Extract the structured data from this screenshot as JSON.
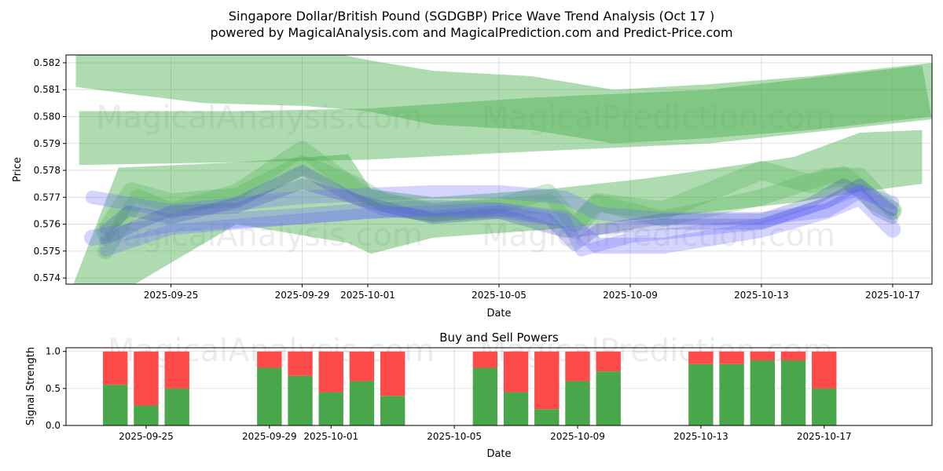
{
  "chart_data": [
    {
      "type": "area",
      "title": "Singapore Dollar/British Pound (SGDGBP) Price Wave Trend Analysis (Oct 17 )",
      "subtitle": "powered by MagicalAnalysis.com and MagicalPrediction.com and Predict-Price.com",
      "xlabel": "Date",
      "ylabel": "Price",
      "x_unit": "days since 2025-09-25",
      "xlim": [
        -3.2,
        23.2
      ],
      "ylim": [
        0.57377,
        0.58229
      ],
      "yticks": [
        "0.574",
        "0.575",
        "0.576",
        "0.577",
        "0.578",
        "0.579",
        "0.580",
        "0.581",
        "0.582"
      ],
      "ytick_values": [
        0.574,
        0.575,
        0.576,
        0.577,
        0.578,
        0.579,
        0.58,
        0.581,
        0.582
      ],
      "xticks": [
        "2025-09-25",
        "2025-09-29",
        "2025-10-01",
        "2025-10-05",
        "2025-10-09",
        "2025-10-13",
        "2025-10-17"
      ],
      "xtick_values": [
        0,
        4,
        6,
        10,
        14,
        18,
        22
      ],
      "grid": true,
      "watermarks": [
        "MagicalAnalysis.com",
        "MagicalPrediction.com"
      ],
      "bands": [
        {
          "color": "#4caf50",
          "x": [
            -2.9,
            -1,
            1,
            4,
            6,
            8,
            11,
            13.5,
            16.4,
            19.5,
            23.2,
            23.2,
            19.5,
            16.4,
            13.5,
            11,
            8,
            6,
            4,
            1,
            -1,
            -2.9
          ],
          "y": [
            0.5825,
            0.5827,
            0.5827,
            0.5826,
            0.5821,
            0.5817,
            0.5815,
            0.581,
            0.5812,
            0.5815,
            0.582,
            0.58,
            0.5795,
            0.5792,
            0.579,
            0.5795,
            0.5797,
            0.5802,
            0.5804,
            0.5805,
            0.5808,
            0.5811
          ]
        },
        {
          "color": "#4caf50",
          "x": [
            -2.8,
            2,
            6,
            11,
            16.4,
            22.9,
            23.2,
            16.4,
            11,
            6,
            2,
            -2.8
          ],
          "y": [
            0.5802,
            0.5802,
            0.5803,
            0.5807,
            0.581,
            0.5819,
            0.5799,
            0.579,
            0.5787,
            0.5784,
            0.5783,
            0.5782
          ]
        },
        {
          "color": "#4caf50",
          "x": [
            -3,
            -1.6,
            2,
            5.4,
            6.1,
            8,
            11.5,
            14.5,
            19,
            21,
            22.9,
            22.9,
            21,
            19,
            14.5,
            11.5,
            8,
            6.1,
            5.4,
            2,
            -1.2,
            -3
          ],
          "y": [
            0.5737,
            0.5781,
            0.5783,
            0.5786,
            0.5773,
            0.577,
            0.5773,
            0.5777,
            0.5785,
            0.5794,
            0.5795,
            0.5775,
            0.5772,
            0.5768,
            0.5762,
            0.5758,
            0.5755,
            0.5749,
            0.5753,
            0.576,
            0.5737,
            0.5737
          ]
        }
      ],
      "waves": [
        {
          "color": "#4caf50",
          "width": 0.0007,
          "x": [
            -2,
            -1.2,
            0,
            2,
            4,
            5.5,
            6.5,
            8,
            10,
            11.5,
            12.3,
            13,
            15,
            18,
            19.5,
            20.5,
            21.5,
            22
          ],
          "y": [
            0.5757,
            0.5772,
            0.5768,
            0.577,
            0.5782,
            0.5775,
            0.5768,
            0.5764,
            0.5766,
            0.5768,
            0.5758,
            0.5768,
            0.5765,
            0.578,
            0.5775,
            0.5778,
            0.5768,
            0.5765
          ]
        },
        {
          "color": "#4caf50",
          "width": 0.0006,
          "x": [
            -2,
            -1,
            0,
            2,
            4,
            6,
            8,
            10,
            11.5,
            12.3,
            13,
            15,
            18,
            20,
            21,
            22
          ],
          "y": [
            0.575,
            0.577,
            0.5765,
            0.5772,
            0.5788,
            0.577,
            0.5765,
            0.5767,
            0.5772,
            0.576,
            0.5768,
            0.5762,
            0.577,
            0.5778,
            0.5778,
            0.5765
          ]
        },
        {
          "color": "#3f51b5",
          "width": 0.0004,
          "x": [
            -2,
            -1.3,
            0,
            2,
            4,
            5.5,
            6.5,
            8,
            10,
            11.5,
            12.3,
            13,
            15,
            18,
            19.5,
            20.5,
            21,
            21.5,
            22
          ],
          "y": [
            0.5758,
            0.5765,
            0.5762,
            0.5768,
            0.578,
            0.577,
            0.5765,
            0.5763,
            0.5765,
            0.5762,
            0.5752,
            0.5758,
            0.5762,
            0.5762,
            0.5768,
            0.5775,
            0.5772,
            0.5765,
            0.5762
          ]
        },
        {
          "color": "#3f51b5",
          "width": 0.0004,
          "x": [
            -2,
            -1,
            0,
            2,
            4,
            6,
            8,
            10,
            12,
            13,
            15,
            18,
            20,
            21,
            22
          ],
          "y": [
            0.5754,
            0.576,
            0.5765,
            0.5766,
            0.5775,
            0.5768,
            0.5762,
            0.5764,
            0.5757,
            0.5758,
            0.576,
            0.576,
            0.5768,
            0.5775,
            0.5765
          ]
        },
        {
          "color": "#6666ff",
          "width": 0.0005,
          "x": [
            -2.4,
            0,
            4,
            6,
            8,
            10,
            12,
            13,
            15,
            18,
            20,
            21,
            22
          ],
          "y": [
            0.577,
            0.5765,
            0.577,
            0.5771,
            0.5772,
            0.5772,
            0.577,
            0.5764,
            0.5762,
            0.5762,
            0.5765,
            0.5772,
            0.5768
          ]
        },
        {
          "color": "#6666ff",
          "width": 0.0006,
          "x": [
            -2.4,
            0,
            4,
            6,
            8,
            10,
            12,
            13,
            15,
            18,
            20,
            21,
            22
          ],
          "y": [
            0.5755,
            0.576,
            0.5763,
            0.5765,
            0.5766,
            0.5765,
            0.5762,
            0.5752,
            0.5752,
            0.5758,
            0.5765,
            0.577,
            0.5758
          ]
        },
        {
          "color": "#6666ff",
          "width": 0.0004,
          "x": [
            -2,
            0,
            4,
            6,
            8,
            10,
            12,
            12.5,
            14,
            18,
            20,
            21,
            22
          ],
          "y": [
            0.575,
            0.5758,
            0.5762,
            0.5764,
            0.5765,
            0.5766,
            0.5762,
            0.575,
            0.5755,
            0.576,
            0.5768,
            0.5773,
            0.5765
          ]
        }
      ]
    },
    {
      "type": "bar",
      "title": "Buy and Sell Powers",
      "xlabel": "Date",
      "ylabel": "Signal Strength",
      "x_unit": "days since 2025-09-25",
      "xlim": [
        -2.6,
        25.5
      ],
      "ylim": [
        0,
        1.05
      ],
      "yticks": [
        "0.0",
        "0.5",
        "1.0"
      ],
      "ytick_values": [
        0,
        0.5,
        1
      ],
      "xticks": [
        "2025-09-25",
        "2025-09-29",
        "2025-10-01",
        "2025-10-05",
        "2025-10-09",
        "2025-10-13",
        "2025-10-17"
      ],
      "xtick_values": [
        0,
        4,
        6,
        10,
        14,
        18,
        22
      ],
      "watermarks": [
        "MagicalAnalysis.com",
        "MagicalPrediction.com"
      ],
      "categories": [
        "2025-09-24",
        "2025-09-25",
        "2025-09-26",
        "2025-09-29",
        "2025-09-30",
        "2025-10-01",
        "2025-10-02",
        "2025-10-03",
        "2025-10-06",
        "2025-10-07",
        "2025-10-08",
        "2025-10-09",
        "2025-10-10",
        "2025-10-13",
        "2025-10-14",
        "2025-10-15",
        "2025-10-16",
        "2025-10-17"
      ],
      "x": [
        -1,
        0,
        1,
        4,
        5,
        6,
        7,
        8,
        11,
        12,
        13,
        14,
        15,
        18,
        19,
        20,
        21,
        22
      ],
      "series": [
        {
          "name": "Buy",
          "color": "#4aa64a",
          "values": [
            0.55,
            0.27,
            0.5,
            0.78,
            0.67,
            0.45,
            0.6,
            0.4,
            0.78,
            0.45,
            0.22,
            0.6,
            0.73,
            0.83,
            0.83,
            0.88,
            0.88,
            0.5
          ]
        },
        {
          "name": "Sell",
          "color": "#ff4a4a",
          "values": [
            0.45,
            0.73,
            0.5,
            0.22,
            0.33,
            0.55,
            0.4,
            0.6,
            0.22,
            0.55,
            0.78,
            0.4,
            0.27,
            0.17,
            0.17,
            0.12,
            0.12,
            0.5
          ]
        }
      ]
    }
  ]
}
